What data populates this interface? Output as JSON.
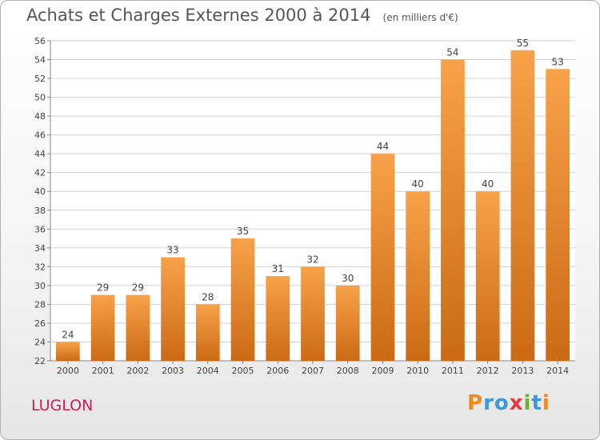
{
  "chart_data": {
    "type": "bar",
    "title": "Achats et Charges Externes 2000 à 2014",
    "subtitle": "(en milliers d'€)",
    "categories": [
      "2000",
      "2001",
      "2002",
      "2003",
      "2004",
      "2005",
      "2006",
      "2007",
      "2008",
      "2009",
      "2010",
      "2011",
      "2012",
      "2013",
      "2014"
    ],
    "values": [
      24,
      29,
      29,
      33,
      28,
      35,
      31,
      32,
      30,
      44,
      40,
      54,
      40,
      55,
      53
    ],
    "ylim": [
      22,
      56
    ],
    "yticks": [
      22,
      24,
      26,
      28,
      30,
      32,
      34,
      36,
      38,
      40,
      42,
      44,
      46,
      48,
      50,
      52,
      54,
      56
    ],
    "grid": true,
    "bar_color_top": "#f7a24a",
    "bar_color_bottom": "#cc6a14",
    "grid_color": "#d0d0d0"
  },
  "footer": {
    "commune": "LUGLON",
    "commune_color": "#c81e5a",
    "logo_text": "Proxiti",
    "logo_colors": [
      "#f08a1e",
      "#3a9ad9",
      "#3a9ad9",
      "#e03a3a",
      "#6ab42d",
      "#3a9ad9",
      "#f08a1e"
    ]
  }
}
